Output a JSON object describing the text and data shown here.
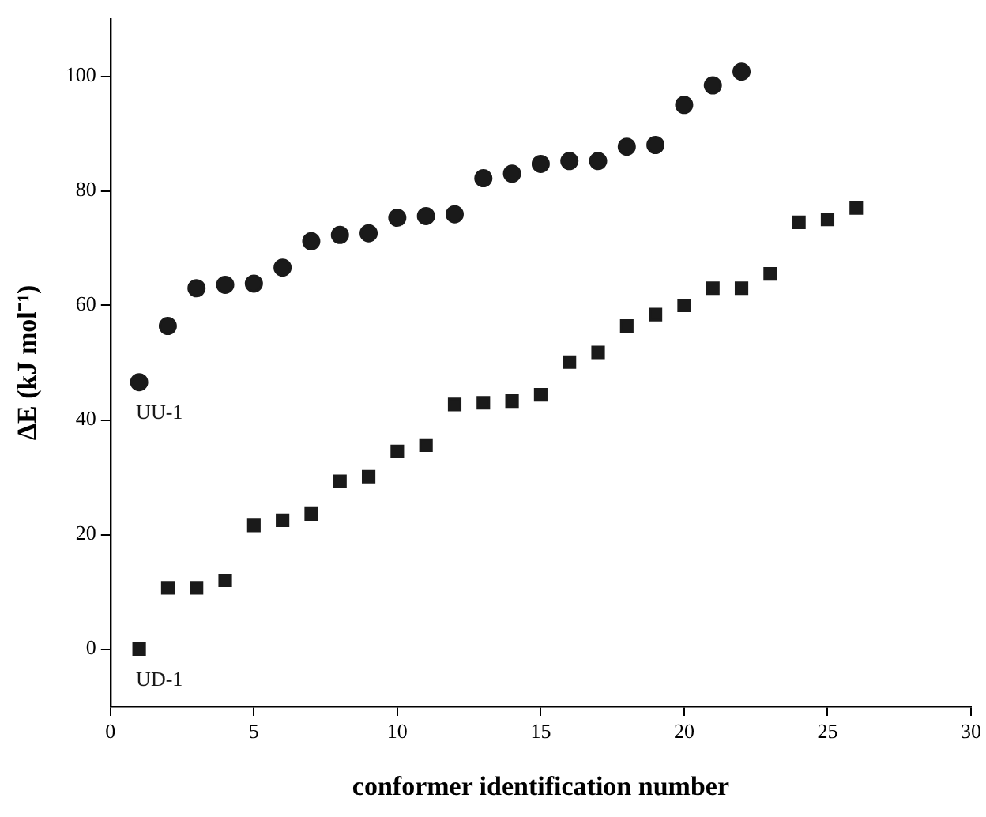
{
  "chart_data": {
    "type": "scatter",
    "xlabel": "conformer identification number",
    "ylabel": "ΔE (kJ mol⁻¹)",
    "xlim": [
      0,
      30
    ],
    "xticks": [
      0,
      5,
      10,
      15,
      20,
      25,
      30
    ],
    "ylim": [
      -10,
      110
    ],
    "yticks": [
      0,
      20,
      40,
      60,
      80,
      100
    ],
    "grid": false,
    "legend": false,
    "series": [
      {
        "color": "#1a1a1a",
        "marker": "circle",
        "x": [
          1,
          2,
          3,
          4,
          5,
          6,
          7,
          8,
          9,
          10,
          11,
          12,
          13,
          14,
          15,
          16,
          17,
          18,
          19,
          20,
          21,
          22
        ],
        "values": [
          46.6,
          56.4,
          63,
          63.6,
          63.8,
          66.6,
          71.2,
          72.3,
          72.6,
          75.3,
          75.6,
          75.9,
          82.2,
          83,
          84.7,
          85.2,
          85.2,
          87.7,
          88,
          95,
          98.4,
          100.8
        ]
      },
      {
        "color": "#1a1a1a",
        "marker": "square",
        "x": [
          1,
          2,
          3,
          4,
          5,
          6,
          7,
          8,
          9,
          10,
          11,
          12,
          13,
          14,
          15,
          16,
          17,
          18,
          19,
          20,
          21,
          22,
          23,
          24,
          25,
          26
        ],
        "values": [
          0,
          10.7,
          10.7,
          12,
          21.6,
          22.5,
          23.6,
          29.3,
          30.1,
          34.5,
          35.6,
          42.7,
          43,
          43.3,
          44.4,
          50.1,
          51.8,
          56.4,
          58.4,
          60,
          63,
          63,
          65.5,
          74.5,
          75,
          77
        ]
      }
    ],
    "annotations": [
      {
        "text": "UU-1",
        "x": 1,
        "y": 46.6
      },
      {
        "text": "UD-1",
        "x": 1,
        "y": 0
      }
    ]
  }
}
